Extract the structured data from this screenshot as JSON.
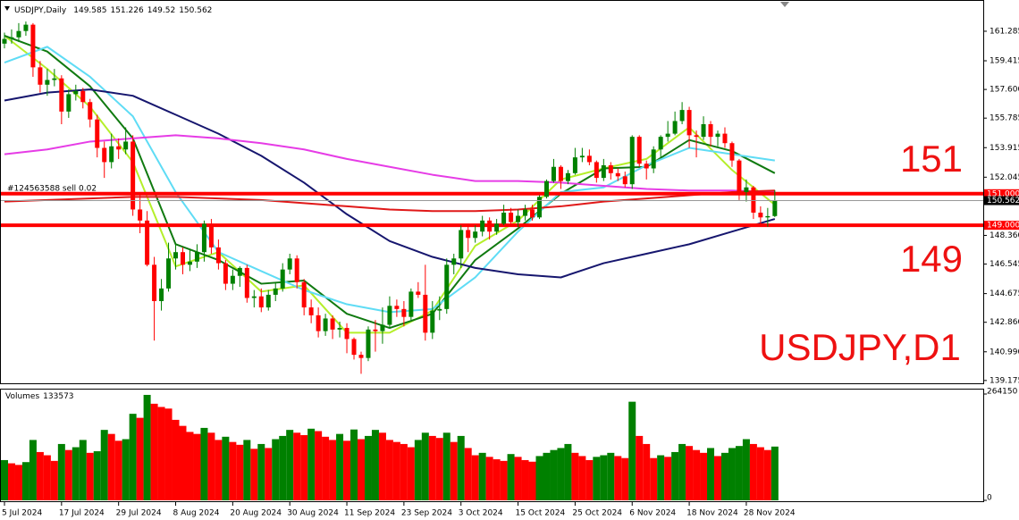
{
  "chart_data": {
    "type": "candlestick",
    "title": "USDJPY,Daily",
    "candles": {
      "open": [
        160.5,
        160.8,
        160.9,
        161.3,
        161.7,
        159.0,
        157.9,
        158.2,
        158.3,
        156.2,
        157.3,
        157.5,
        156.8,
        155.7,
        153.9,
        153.0,
        154.0,
        153.8,
        154.3,
        150.0,
        149.3,
        146.5,
        144.2,
        145.0,
        146.9,
        147.3,
        146.5,
        146.7,
        147.3,
        149.1,
        147.6,
        146.6,
        145.3,
        145.8,
        146.3,
        144.4,
        144.5,
        143.8,
        144.6,
        145.0,
        146.2,
        146.9,
        145.4,
        143.8,
        143.3,
        142.3,
        143.1,
        142.4,
        142.5,
        141.8,
        140.8,
        140.6,
        142.4,
        142.3,
        142.7,
        143.9,
        143.7,
        143.2,
        144.8,
        144.6,
        142.2,
        143.6,
        143.7,
        146.5,
        146.9,
        148.7,
        148.2,
        148.6,
        149.3,
        148.6,
        149.1,
        149.8,
        149.2,
        149.6,
        150.0,
        149.5,
        150.8,
        151.8,
        152.7,
        151.8,
        152.3,
        153.3,
        153.4,
        153.0,
        152.0,
        152.8,
        152.3,
        152.1,
        151.6,
        154.6,
        152.9,
        152.6,
        153.8,
        154.6,
        154.8,
        155.6,
        156.3,
        154.7,
        154.6,
        155.4,
        154.6,
        154.8,
        154.2,
        153.1,
        151.1,
        151.4,
        149.8,
        149.5,
        149.585
      ],
      "high": [
        161.2,
        161.4,
        161.8,
        161.9,
        161.8,
        159.4,
        158.9,
        158.9,
        158.5,
        157.6,
        157.9,
        157.7,
        157.0,
        156.0,
        154.3,
        154.8,
        154.5,
        155.2,
        154.7,
        151.0,
        149.9,
        147.0,
        145.6,
        147.9,
        147.8,
        147.6,
        147.5,
        147.8,
        149.3,
        149.4,
        148.1,
        146.8,
        146.2,
        146.4,
        146.5,
        144.9,
        145.0,
        144.9,
        145.4,
        146.6,
        147.2,
        147.1,
        145.6,
        144.3,
        143.8,
        143.4,
        143.3,
        142.9,
        142.8,
        141.9,
        141.0,
        142.6,
        143.0,
        143.8,
        144.5,
        144.3,
        144.2,
        145.0,
        145.4,
        146.5,
        144.2,
        144.5,
        146.9,
        147.2,
        149.0,
        149.1,
        149.0,
        149.6,
        149.5,
        149.4,
        150.3,
        150.1,
        150.0,
        150.3,
        150.3,
        150.9,
        151.9,
        153.2,
        152.8,
        152.5,
        153.9,
        153.9,
        153.8,
        153.1,
        153.2,
        153.0,
        152.6,
        152.4,
        154.7,
        154.7,
        153.1,
        154.0,
        154.7,
        155.6,
        156.2,
        156.8,
        156.5,
        155.0,
        155.9,
        155.6,
        155.0,
        155.2,
        154.3,
        153.2,
        151.9,
        151.5,
        150.2,
        150.1,
        151.226
      ],
      "low": [
        160.2,
        160.5,
        160.6,
        161.0,
        158.4,
        157.4,
        157.2,
        157.8,
        155.4,
        155.8,
        156.9,
        156.4,
        155.2,
        153.3,
        152.0,
        152.6,
        153.2,
        153.5,
        149.6,
        148.5,
        146.4,
        141.7,
        143.6,
        144.8,
        146.2,
        145.9,
        146.1,
        146.3,
        146.7,
        147.2,
        146.2,
        144.9,
        144.9,
        145.1,
        144.1,
        143.8,
        143.5,
        143.6,
        144.2,
        144.8,
        145.9,
        145.0,
        143.3,
        142.8,
        141.9,
        142.0,
        141.8,
        141.9,
        140.9,
        140.5,
        139.6,
        140.4,
        141.0,
        141.5,
        142.5,
        143.2,
        142.6,
        143.0,
        144.4,
        141.7,
        141.8,
        143.0,
        143.4,
        145.9,
        146.3,
        147.3,
        147.9,
        148.3,
        148.1,
        148.4,
        149.0,
        148.9,
        148.9,
        149.3,
        149.3,
        149.4,
        150.7,
        151.7,
        151.3,
        151.6,
        152.2,
        153.0,
        152.8,
        151.7,
        151.8,
        151.9,
        151.8,
        151.4,
        151.3,
        152.7,
        151.9,
        152.3,
        153.3,
        154.3,
        154.7,
        155.4,
        153.9,
        153.3,
        154.4,
        154.0,
        154.0,
        153.9,
        152.7,
        150.6,
        150.5,
        149.4,
        149.0,
        148.9,
        149.52
      ],
      "close": [
        160.8,
        160.9,
        161.3,
        161.7,
        159.0,
        157.9,
        158.2,
        158.3,
        156.2,
        157.3,
        157.5,
        156.8,
        155.7,
        153.9,
        153.0,
        154.0,
        153.8,
        154.3,
        150.0,
        149.3,
        146.5,
        144.2,
        145.0,
        146.9,
        147.3,
        146.5,
        146.7,
        147.3,
        149.1,
        147.6,
        146.6,
        145.3,
        145.8,
        146.3,
        144.4,
        144.5,
        143.8,
        144.6,
        145.0,
        146.2,
        146.9,
        145.4,
        143.8,
        143.3,
        142.3,
        143.1,
        142.4,
        142.5,
        141.8,
        140.8,
        140.6,
        142.4,
        142.3,
        142.7,
        143.9,
        143.7,
        143.2,
        144.8,
        144.6,
        142.2,
        143.6,
        143.7,
        146.5,
        146.9,
        148.7,
        148.2,
        148.6,
        149.3,
        148.6,
        149.1,
        149.8,
        149.2,
        149.6,
        150.0,
        149.5,
        150.8,
        151.8,
        152.7,
        151.8,
        152.3,
        153.3,
        153.4,
        153.0,
        152.0,
        152.8,
        152.3,
        152.1,
        151.6,
        154.6,
        152.9,
        152.6,
        153.8,
        154.6,
        154.8,
        155.6,
        156.3,
        154.7,
        154.6,
        155.4,
        154.6,
        154.8,
        154.2,
        153.1,
        151.1,
        151.4,
        149.8,
        149.5,
        149.58,
        150.562
      ]
    },
    "up_color": "#008000",
    "down_color": "#ff0000",
    "ylim": [
      138.94,
      162.81
    ],
    "yticks": [
      161.285,
      159.415,
      {
        "value": 157.6,
        "label": "157.600"
      },
      155.785,
      153.915,
      152.045,
      {
        "value": 148.36,
        "label": "148.360"
      },
      146.545,
      144.675,
      {
        "value": 142.86,
        "label": "142.860"
      },
      {
        "value": 140.99,
        "label": "140.990"
      },
      139.175
    ],
    "xticks": [
      {
        "value": 0,
        "label": "5 Jul 2024"
      },
      {
        "value": 8,
        "label": "17 Jul 2024"
      },
      {
        "value": 16,
        "label": "29 Jul 2024"
      },
      {
        "value": 24,
        "label": "8 Aug 2024"
      },
      {
        "value": 32,
        "label": "20 Aug 2024"
      },
      {
        "value": 40,
        "label": "30 Aug 2024"
      },
      {
        "value": 48,
        "label": "11 Sep 2024"
      },
      {
        "value": 56,
        "label": "23 Sep 2024"
      },
      {
        "value": 64,
        "label": "3 Oct 2024"
      },
      {
        "value": 72,
        "label": "15 Oct 2024"
      },
      {
        "value": 80,
        "label": "25 Oct 2024"
      },
      {
        "value": 88,
        "label": "6 Nov 2024"
      },
      {
        "value": 96,
        "label": "18 Nov 2024"
      },
      {
        "value": 104,
        "label": "28 Nov 2024"
      }
    ],
    "levels": [
      {
        "value": 151,
        "label": "151.000",
        "color": "#ff0000"
      },
      {
        "value": 149,
        "label": "149.000",
        "color": "#ff0000"
      }
    ],
    "order_label": "#124563588 sell 0.02",
    "annotations": [
      "151",
      "149",
      "USDJPY,D1"
    ],
    "moving_averages": {
      "x": [
        0,
        6,
        12,
        18,
        24,
        30,
        36,
        42,
        48,
        54,
        60,
        66,
        72,
        78,
        84,
        90,
        96,
        102,
        108
      ],
      "series": [
        {
          "color": "#b5ef2a",
          "values": [
            161.0,
            158.9,
            156.5,
            153.0,
            146.4,
            147.3,
            144.8,
            145.2,
            142.2,
            142.2,
            143.6,
            147.7,
            149.3,
            151.9,
            152.6,
            153.2,
            155.2,
            152.5,
            150.3
          ]
        },
        {
          "color": "#107a10",
          "values": [
            161.0,
            160.0,
            157.8,
            154.5,
            147.8,
            146.8,
            145.3,
            145.5,
            143.4,
            142.5,
            143.4,
            146.8,
            148.8,
            151.0,
            152.6,
            152.7,
            154.4,
            153.7,
            152.3
          ]
        },
        {
          "color": "#5fdcf5",
          "values": [
            159.3,
            160.3,
            158.4,
            155.9,
            151.1,
            147.3,
            146.1,
            144.9,
            144.0,
            143.5,
            143.7,
            145.7,
            148.6,
            151.1,
            151.4,
            152.8,
            153.9,
            153.5,
            153.1
          ]
        },
        {
          "color": "#16166e",
          "values": [
            156.9,
            157.4,
            157.6,
            157.2,
            156.0,
            154.8,
            153.4,
            151.7,
            149.7,
            148.0,
            147.0,
            146.3,
            145.9,
            145.7,
            146.6,
            147.2,
            147.8,
            148.6,
            149.4
          ]
        },
        {
          "color": "#e63ce6",
          "values": [
            153.5,
            153.8,
            154.3,
            154.5,
            154.7,
            154.5,
            154.2,
            153.8,
            153.2,
            152.7,
            152.2,
            151.8,
            151.8,
            151.7,
            151.5,
            151.3,
            151.2,
            151.2,
            151.1
          ]
        },
        {
          "color": "#e01818",
          "values": [
            150.5,
            150.6,
            150.7,
            150.8,
            150.8,
            150.7,
            150.6,
            150.4,
            150.2,
            150.0,
            149.9,
            149.9,
            150.0,
            150.2,
            150.5,
            150.7,
            150.9,
            151.1,
            151.2
          ]
        }
      ]
    },
    "volumes": {
      "title": "Volumes",
      "up_color": "#008000",
      "down_color": "#ff0000",
      "ylim": [
        0,
        264150
      ],
      "yticks": [
        264150,
        0
      ],
      "values": [
        100000,
        92000,
        88000,
        95000,
        150000,
        120000,
        112000,
        98000,
        140000,
        125000,
        132000,
        150000,
        118000,
        122000,
        175000,
        165000,
        148000,
        152000,
        215000,
        205000,
        262000,
        240000,
        232000,
        228000,
        200000,
        185000,
        170000,
        165000,
        180000,
        168000,
        150000,
        158000,
        145000,
        138000,
        150000,
        128000,
        140000,
        130000,
        152000,
        160000,
        175000,
        168000,
        162000,
        178000,
        172000,
        158000,
        150000,
        165000,
        148000,
        176000,
        152000,
        160000,
        175000,
        168000,
        150000,
        145000,
        140000,
        132000,
        150000,
        168000,
        160000,
        155000,
        168000,
        145000,
        160000,
        130000,
        112000,
        118000,
        108000,
        102000,
        98000,
        115000,
        108000,
        100000,
        96000,
        110000,
        118000,
        125000,
        130000,
        140000,
        118000,
        110000,
        100000,
        108000,
        112000,
        118000,
        110000,
        105000,
        245000,
        160000,
        140000,
        105000,
        112000,
        108000,
        120000,
        140000,
        135000,
        125000,
        118000,
        130000,
        110000,
        118000,
        130000,
        135000,
        152000,
        140000,
        132000,
        125000,
        133573
      ]
    }
  }
}
